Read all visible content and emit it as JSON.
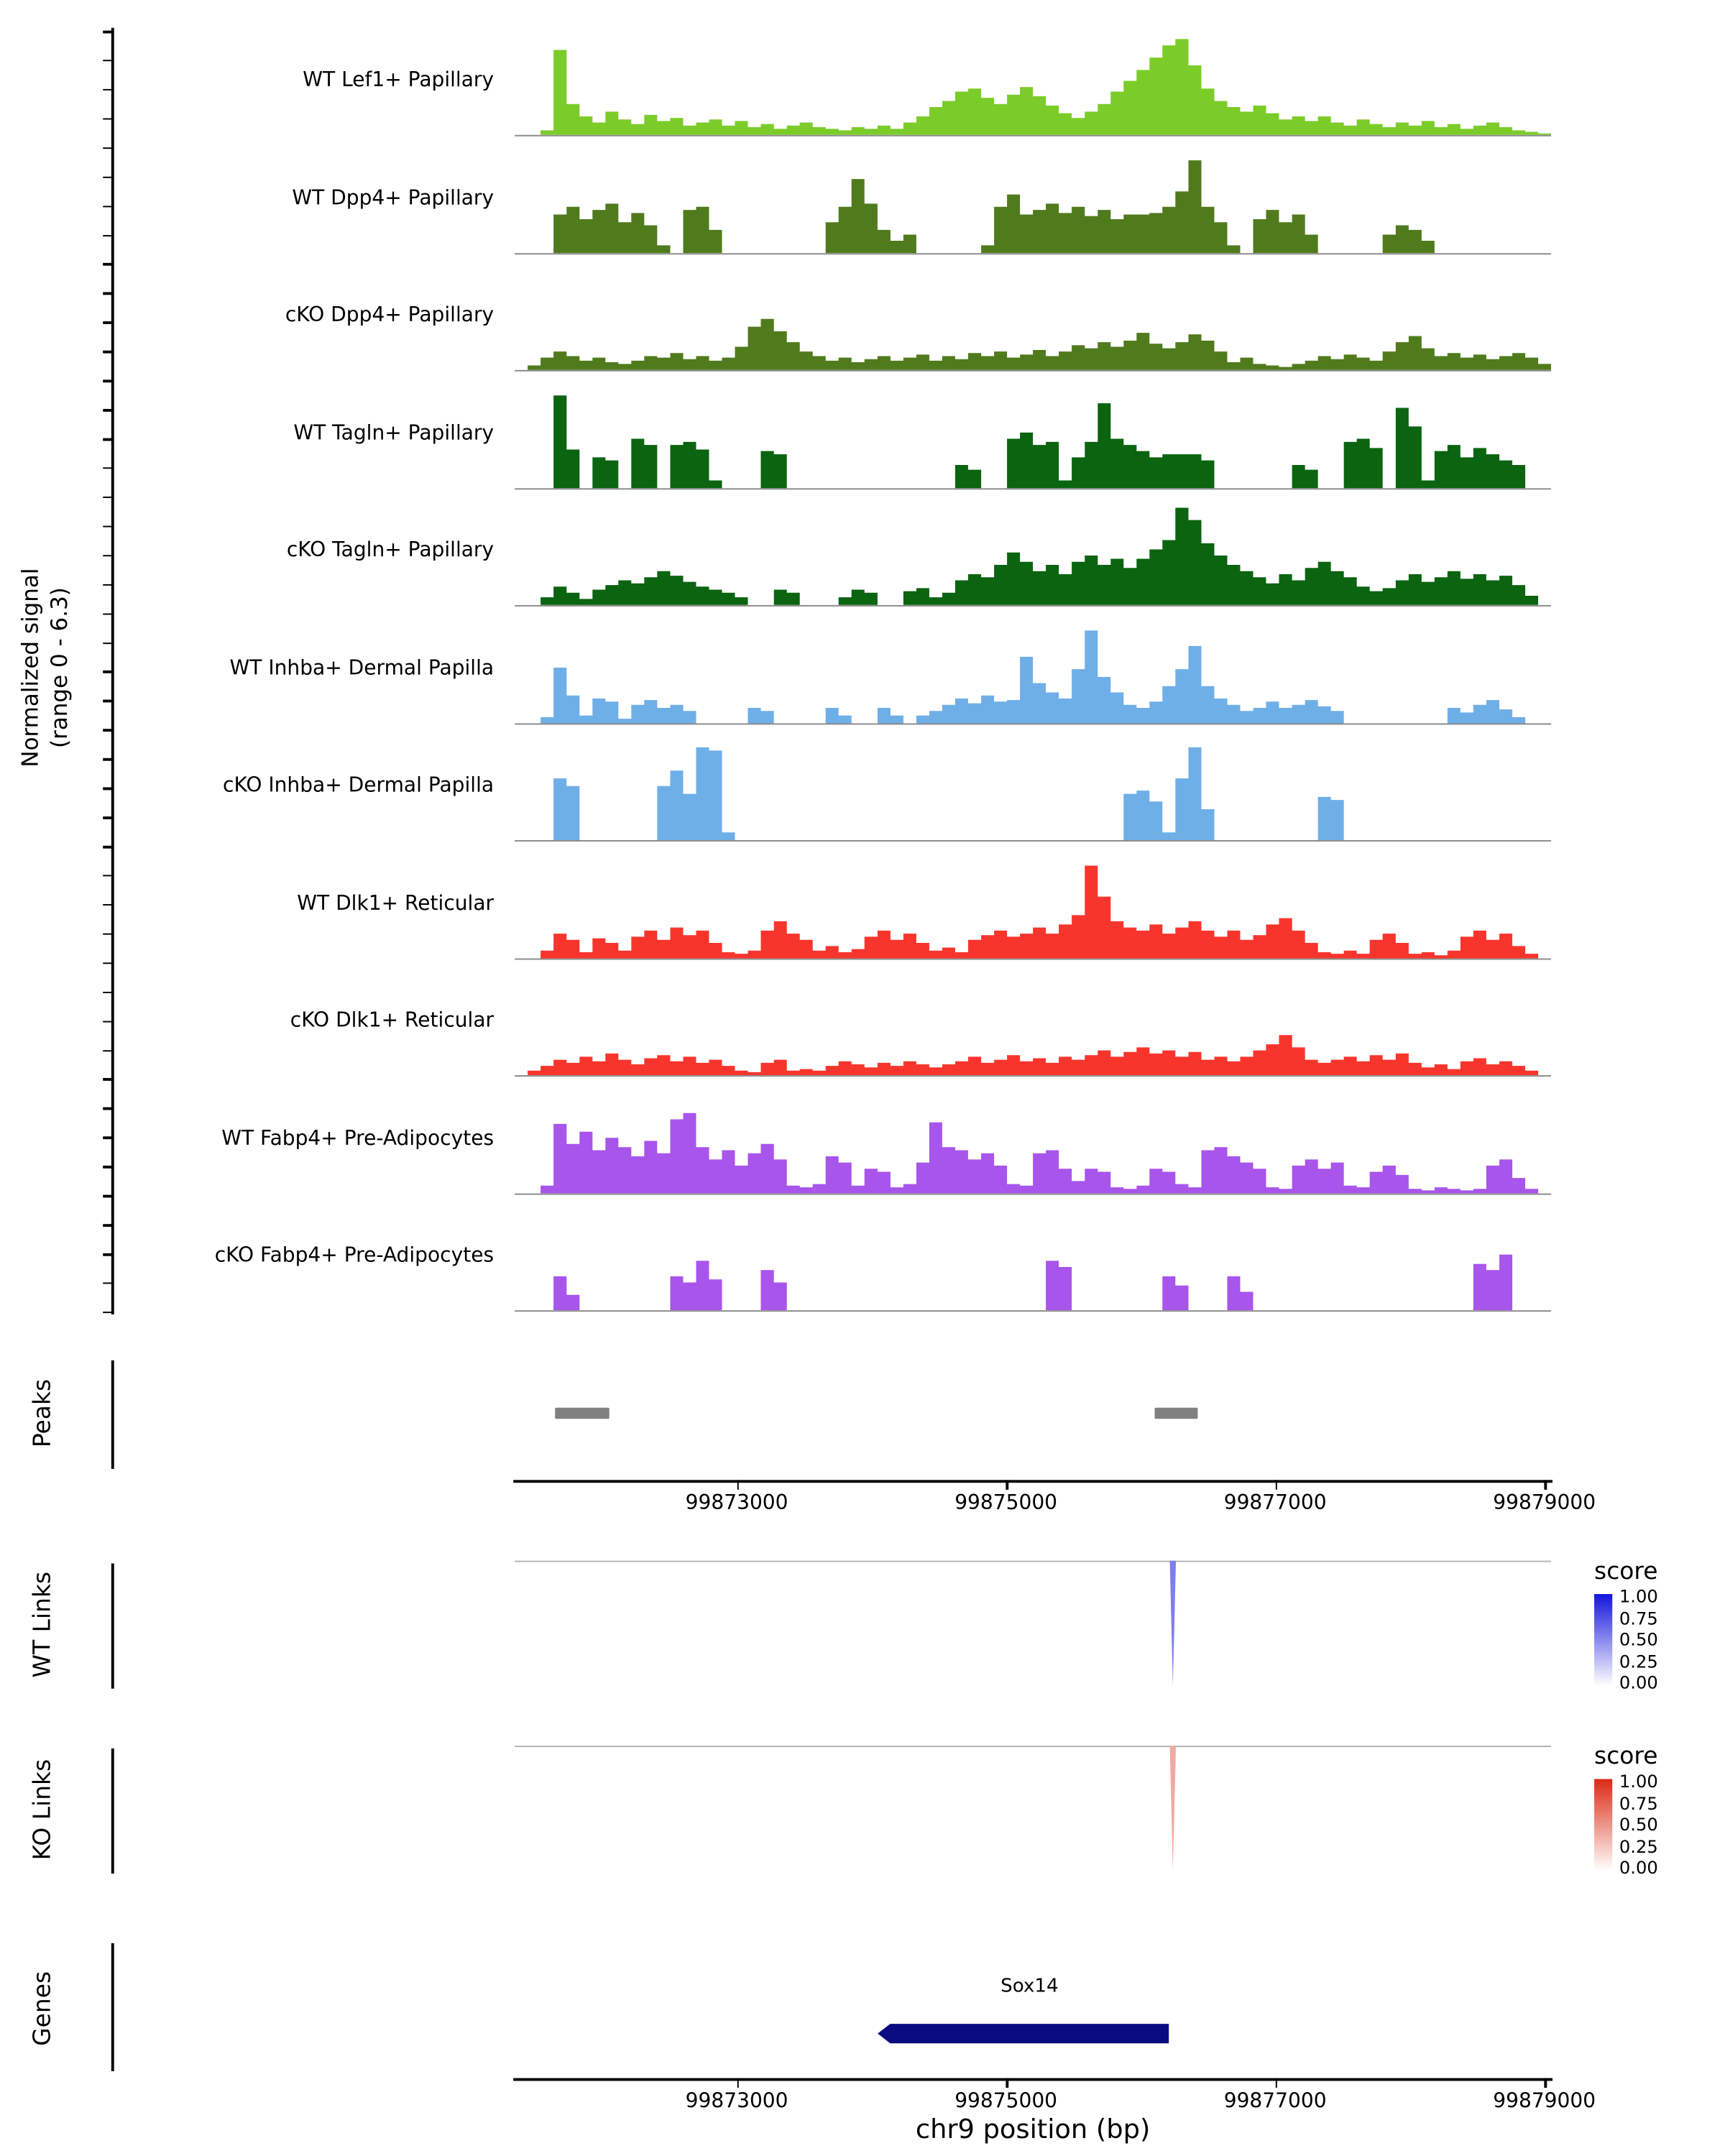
{
  "y_axis": {
    "label_line1": "Normalized signal",
    "label_line2": "(range 0 - 6.3)"
  },
  "x_axis": {
    "ticks": [
      99873000,
      99875000,
      99877000,
      99879000
    ],
    "label": "chr9 position (bp)"
  },
  "chart_data": {
    "type": "area",
    "region": {
      "chrom": "chr9",
      "start": 99871350,
      "end": 99879050
    },
    "bins_per_track": 80,
    "signal_range": [
      0,
      6.3
    ],
    "tracks": [
      {
        "label": "WT Lef1+ Papillary",
        "color": "#7CCC29",
        "values": [
          0,
          0,
          0.3,
          5.5,
          2.0,
          1.2,
          0.8,
          1.5,
          1.0,
          0.7,
          1.3,
          0.9,
          1.1,
          0.6,
          0.8,
          1.0,
          0.6,
          0.9,
          0.5,
          0.7,
          0.4,
          0.6,
          0.8,
          0.5,
          0.4,
          0.3,
          0.5,
          0.4,
          0.6,
          0.4,
          0.8,
          1.2,
          1.8,
          2.2,
          2.8,
          3.0,
          2.4,
          2.0,
          2.6,
          3.1,
          2.5,
          1.9,
          1.4,
          1.1,
          1.5,
          2.0,
          2.8,
          3.5,
          4.2,
          5.0,
          5.8,
          6.2,
          4.5,
          3.0,
          2.2,
          1.8,
          1.5,
          1.9,
          1.4,
          1.0,
          1.2,
          0.9,
          1.2,
          0.8,
          0.6,
          1.0,
          0.7,
          0.5,
          0.8,
          0.6,
          0.9,
          0.5,
          0.7,
          0.4,
          0.6,
          0.8,
          0.5,
          0.3,
          0.2,
          0.1
        ]
      },
      {
        "label": "WT Dpp4+ Papillary",
        "color": "#507B1D",
        "values": [
          0,
          0,
          0,
          2.5,
          3.0,
          2.2,
          2.8,
          3.2,
          2.0,
          2.6,
          1.8,
          0.5,
          0,
          2.8,
          3.0,
          1.5,
          0,
          0,
          0,
          0,
          0,
          0,
          0,
          0,
          2.0,
          3.0,
          4.8,
          3.2,
          1.5,
          0.8,
          1.2,
          0,
          0,
          0,
          0,
          0,
          0.5,
          3.0,
          3.8,
          2.5,
          2.8,
          3.2,
          2.6,
          3.0,
          2.4,
          2.8,
          2.2,
          2.5,
          2.5,
          2.6,
          3.0,
          4.0,
          6.0,
          3.0,
          2.0,
          0.5,
          0,
          2.2,
          2.8,
          2.0,
          2.5,
          1.2,
          0,
          0,
          0,
          0,
          0,
          1.2,
          1.8,
          1.5,
          0.8,
          0,
          0,
          0,
          0,
          0,
          0,
          0,
          0,
          0
        ]
      },
      {
        "label": "cKO Dpp4+ Papillary",
        "color": "#507B1D",
        "values": [
          0,
          0.3,
          0.8,
          1.2,
          0.9,
          0.6,
          0.8,
          0.5,
          0.4,
          0.6,
          0.9,
          0.8,
          1.1,
          0.7,
          0.9,
          0.6,
          0.8,
          1.5,
          2.8,
          3.3,
          2.5,
          1.8,
          1.2,
          0.9,
          0.6,
          0.8,
          0.5,
          0.7,
          0.9,
          0.6,
          0.8,
          1.0,
          0.6,
          0.9,
          0.7,
          1.1,
          0.9,
          1.2,
          0.8,
          1.0,
          1.3,
          0.9,
          1.2,
          1.6,
          1.4,
          1.8,
          1.5,
          1.9,
          2.4,
          1.7,
          1.4,
          1.8,
          2.3,
          1.9,
          1.2,
          0.5,
          0.8,
          0.4,
          0.3,
          0.2,
          0.4,
          0.6,
          0.9,
          0.7,
          1.0,
          0.8,
          0.6,
          1.2,
          1.8,
          2.2,
          1.4,
          0.9,
          1.1,
          0.8,
          1.0,
          0.7,
          0.9,
          1.1,
          0.8,
          0.4
        ]
      },
      {
        "label": "WT Tagln+ Papillary",
        "color": "#0A6410",
        "values": [
          0,
          0,
          0,
          6.0,
          2.5,
          0,
          2.0,
          1.8,
          0,
          3.2,
          2.8,
          0,
          2.8,
          3.0,
          2.5,
          0.5,
          0,
          0,
          0,
          2.4,
          2.2,
          0,
          0,
          0,
          0,
          0,
          0,
          0,
          0,
          0,
          0,
          0,
          0,
          0,
          1.5,
          1.2,
          0,
          0,
          3.2,
          3.6,
          2.8,
          3.0,
          0.5,
          2.0,
          3.0,
          5.5,
          3.2,
          2.8,
          2.4,
          2.0,
          2.2,
          2.2,
          2.2,
          1.8,
          0,
          0,
          0,
          0,
          0,
          0,
          1.5,
          1.2,
          0,
          0,
          3.0,
          3.2,
          2.6,
          0,
          5.2,
          4.0,
          0.5,
          2.4,
          2.8,
          2.0,
          2.6,
          2.2,
          1.8,
          1.5,
          0,
          0
        ]
      },
      {
        "label": "cKO Tagln+ Papillary",
        "color": "#0A6410",
        "values": [
          0,
          0,
          0.5,
          1.2,
          0.8,
          0.4,
          1.0,
          1.3,
          1.6,
          1.4,
          1.8,
          2.2,
          1.9,
          1.5,
          1.2,
          1.0,
          0.8,
          0.5,
          0,
          0,
          1.0,
          0.8,
          0,
          0,
          0,
          0.5,
          1.0,
          0.8,
          0,
          0,
          0.9,
          1.1,
          0.5,
          0.8,
          1.6,
          2.0,
          1.8,
          2.6,
          3.4,
          2.8,
          2.2,
          2.6,
          2.0,
          2.8,
          3.2,
          2.6,
          3.0,
          2.4,
          3.0,
          3.6,
          4.2,
          6.3,
          5.5,
          4.0,
          3.2,
          2.6,
          2.2,
          1.8,
          1.4,
          2.0,
          1.6,
          2.4,
          2.8,
          2.2,
          1.8,
          1.2,
          0.9,
          1.1,
          1.6,
          2.0,
          1.5,
          1.8,
          2.2,
          1.7,
          2.0,
          1.6,
          1.9,
          1.3,
          0.6,
          0
        ]
      },
      {
        "label": "WT Inhba+ Dermal Papilla",
        "color": "#6FAFE8",
        "values": [
          0,
          0,
          0.4,
          3.6,
          1.8,
          0.5,
          1.6,
          1.4,
          0.3,
          1.2,
          1.5,
          1.0,
          1.2,
          0.8,
          0,
          0,
          0,
          0,
          1.0,
          0.8,
          0,
          0,
          0,
          0,
          1.0,
          0.5,
          0,
          0,
          1.0,
          0.5,
          0,
          0.5,
          0.8,
          1.2,
          1.6,
          1.3,
          1.8,
          1.4,
          1.5,
          4.3,
          2.6,
          2.0,
          1.6,
          3.5,
          6.0,
          3.0,
          2.0,
          1.2,
          1.0,
          1.4,
          2.4,
          3.5,
          5.0,
          2.4,
          1.6,
          1.2,
          0.8,
          1.0,
          1.4,
          1.0,
          1.2,
          1.5,
          1.1,
          0.8,
          0,
          0,
          0,
          0,
          0,
          0,
          0,
          0,
          1.0,
          0.7,
          1.2,
          1.5,
          0.9,
          0.4,
          0,
          0
        ]
      },
      {
        "label": "cKO Inhba+ Dermal Papilla",
        "color": "#6FAFE8",
        "values": [
          0,
          0,
          0,
          4.0,
          3.5,
          0,
          0,
          0,
          0,
          0,
          0,
          3.5,
          4.5,
          3.0,
          6.0,
          5.8,
          0.5,
          0,
          0,
          0,
          0,
          0,
          0,
          0,
          0,
          0,
          0,
          0,
          0,
          0,
          0,
          0,
          0,
          0,
          0,
          0,
          0,
          0,
          0,
          0,
          0,
          0,
          0,
          0,
          0,
          0,
          0,
          3.0,
          3.2,
          2.5,
          0.5,
          4.0,
          6.0,
          2.0,
          0,
          0,
          0,
          0,
          0,
          0,
          0,
          0,
          2.8,
          2.6,
          0,
          0,
          0,
          0,
          0,
          0,
          0,
          0,
          0,
          0,
          0,
          0,
          0,
          0,
          0,
          0
        ]
      },
      {
        "label": "WT Dlk1+ Reticular",
        "color": "#F8352C",
        "values": [
          0,
          0,
          0.5,
          1.6,
          1.2,
          0.4,
          1.3,
          1.0,
          0.5,
          1.4,
          1.8,
          1.2,
          2.0,
          1.5,
          1.8,
          1.0,
          0.4,
          0.3,
          0.5,
          1.8,
          2.4,
          1.6,
          1.2,
          0.5,
          0.8,
          0.4,
          0.6,
          1.4,
          1.8,
          1.2,
          1.6,
          1.0,
          0.5,
          0.7,
          0.4,
          1.2,
          1.5,
          1.8,
          1.4,
          1.6,
          2.0,
          1.6,
          2.2,
          2.8,
          6.0,
          4.0,
          2.4,
          2.0,
          1.8,
          2.2,
          1.6,
          2.0,
          2.4,
          1.8,
          1.4,
          1.8,
          1.2,
          1.5,
          2.2,
          2.6,
          1.8,
          1.0,
          0.4,
          0.3,
          0.5,
          0.3,
          1.2,
          1.6,
          1.0,
          0.3,
          0.4,
          0.2,
          0.5,
          1.4,
          1.8,
          1.2,
          1.6,
          0.8,
          0.3,
          0
        ]
      },
      {
        "label": "cKO Dlk1+ Reticular",
        "color": "#F8352C",
        "values": [
          0,
          0.3,
          0.6,
          1.0,
          0.8,
          1.2,
          0.9,
          1.4,
          1.0,
          0.7,
          1.1,
          1.3,
          0.9,
          1.2,
          0.8,
          1.0,
          0.6,
          0.3,
          0.2,
          0.8,
          1.0,
          0.3,
          0.4,
          0.3,
          0.6,
          0.9,
          0.7,
          0.5,
          0.8,
          0.6,
          0.9,
          0.7,
          0.5,
          0.7,
          0.9,
          1.2,
          0.8,
          1.0,
          1.3,
          0.9,
          1.1,
          0.8,
          1.2,
          1.0,
          1.3,
          1.6,
          1.2,
          1.5,
          1.8,
          1.4,
          1.6,
          1.2,
          1.5,
          1.0,
          1.2,
          0.9,
          1.2,
          1.6,
          2.0,
          2.6,
          1.8,
          1.0,
          0.8,
          1.0,
          1.2,
          0.9,
          1.3,
          1.0,
          1.4,
          0.8,
          0.5,
          0.7,
          0.4,
          0.9,
          1.1,
          0.7,
          0.9,
          0.6,
          0.3,
          0
        ]
      },
      {
        "label": "WT Fabp4+ Pre-Adipocytes",
        "color": "#A855EB",
        "values": [
          0,
          0,
          0.5,
          4.5,
          3.2,
          4.0,
          2.8,
          3.6,
          3.0,
          2.4,
          3.4,
          2.6,
          4.8,
          5.2,
          3.0,
          2.2,
          2.8,
          1.8,
          2.6,
          3.2,
          2.2,
          0.5,
          0.4,
          0.6,
          2.4,
          2.0,
          0.5,
          1.6,
          1.4,
          0.4,
          0.6,
          2.0,
          4.6,
          3.0,
          2.8,
          2.2,
          2.6,
          1.8,
          0.6,
          0.5,
          2.6,
          2.8,
          1.6,
          0.8,
          1.6,
          1.4,
          0.4,
          0.3,
          0.5,
          1.6,
          1.4,
          0.6,
          0.4,
          2.8,
          3.0,
          2.4,
          2.0,
          1.6,
          0.4,
          0.3,
          1.8,
          2.2,
          1.6,
          2.0,
          0.5,
          0.4,
          1.4,
          1.8,
          1.2,
          0.3,
          0.2,
          0.4,
          0.3,
          0.2,
          0.3,
          1.8,
          2.2,
          1.0,
          0.3,
          0
        ]
      },
      {
        "label": "cKO Fabp4+ Pre-Adipocytes",
        "color": "#A855EB",
        "values": [
          0,
          0,
          0,
          2.2,
          1.0,
          0,
          0,
          0,
          0,
          0,
          0,
          0,
          2.2,
          1.8,
          3.2,
          2.0,
          0,
          0,
          0,
          2.6,
          1.8,
          0,
          0,
          0,
          0,
          0,
          0,
          0,
          0,
          0,
          0,
          0,
          0,
          0,
          0,
          0,
          0,
          0,
          0,
          0,
          0,
          3.2,
          2.8,
          0,
          0,
          0,
          0,
          0,
          0,
          0,
          2.2,
          1.6,
          0,
          0,
          0,
          2.2,
          1.2,
          0,
          0,
          0,
          0,
          0,
          0,
          0,
          0,
          0,
          0,
          0,
          0,
          0,
          0,
          0,
          0,
          0,
          3.0,
          2.6,
          3.6,
          0,
          0,
          0
        ]
      }
    ],
    "peaks": {
      "label": "Peaks",
      "color": "#808080",
      "intervals": [
        [
          99871650,
          99872050
        ],
        [
          99876100,
          99876420
        ]
      ]
    },
    "links": [
      {
        "label": "WT Links",
        "legend_title": "score",
        "legend_ticks": [
          "1.00",
          "0.75",
          "0.50",
          "0.25",
          "0.00"
        ],
        "color_high": "#1414DC",
        "color_low": "#FFFFFF",
        "links": [
          {
            "position": 99876240,
            "score": 0.55
          }
        ]
      },
      {
        "label": "KO Links",
        "legend_title": "score",
        "legend_ticks": [
          "1.00",
          "0.75",
          "0.50",
          "0.25",
          "0.00"
        ],
        "color_high": "#DC2A14",
        "color_low": "#FFFFFF",
        "links": [
          {
            "position": 99876240,
            "score": 0.4
          }
        ]
      }
    ],
    "genes": {
      "label": "Genes",
      "items": [
        {
          "name": "Sox14",
          "start": 99874140,
          "end": 99876210,
          "strand": "-",
          "color": "#0B0B80"
        }
      ]
    }
  }
}
